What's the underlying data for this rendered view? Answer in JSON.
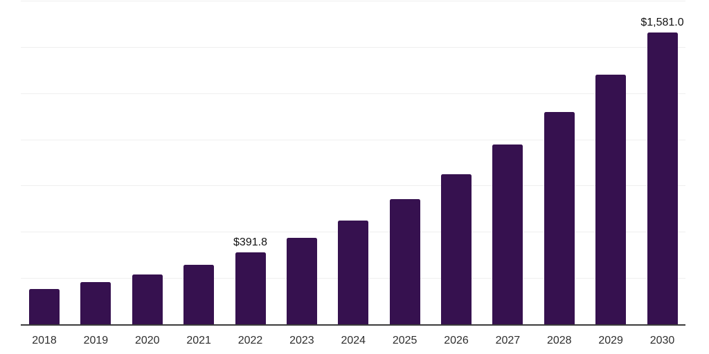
{
  "chart_data": {
    "type": "bar",
    "title": "",
    "xlabel": "",
    "ylabel": "",
    "categories": [
      "2018",
      "2019",
      "2020",
      "2021",
      "2022",
      "2023",
      "2024",
      "2025",
      "2026",
      "2027",
      "2028",
      "2029",
      "2030"
    ],
    "values": [
      193.0,
      230.5,
      273.0,
      326.4,
      391.8,
      471.2,
      563.5,
      680.6,
      816.3,
      974.9,
      1152.9,
      1352.6,
      1581.0
    ],
    "data_labels": {
      "2022": "$391.8",
      "2030": "$1,581.0"
    },
    "ylim": [
      0,
      1750
    ],
    "grid_step": 250,
    "grid": true,
    "legend": false,
    "bar_color": "#36114F",
    "grid_color": "#efefef",
    "axis_color": "#3b3b3b",
    "value_label_color": "#111111",
    "tick_label_color": "#2e2e2e"
  }
}
